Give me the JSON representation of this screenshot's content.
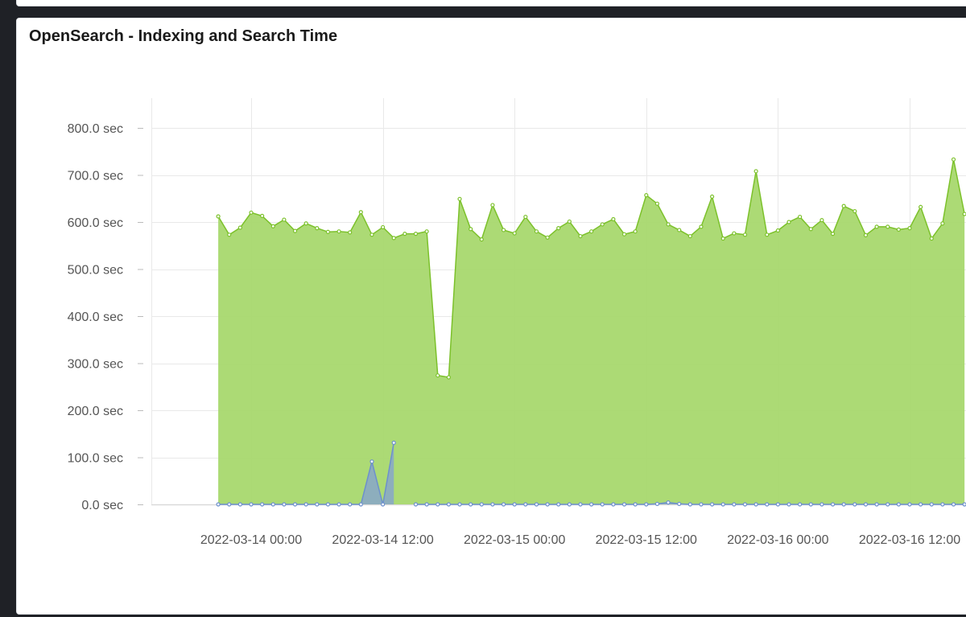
{
  "panel": {
    "title": "OpenSearch - Indexing and Search Time"
  },
  "chart_data": {
    "type": "area",
    "title": "OpenSearch - Indexing and Search Time",
    "xlabel": "",
    "ylabel": "",
    "y_unit": "sec",
    "ylim": [
      0,
      800
    ],
    "y_ticks": [
      {
        "value": 0,
        "label": "0.0  sec"
      },
      {
        "value": 100,
        "label": "100.0  sec"
      },
      {
        "value": 200,
        "label": "200.0  sec"
      },
      {
        "value": 300,
        "label": "300.0  sec"
      },
      {
        "value": 400,
        "label": "400.0  sec"
      },
      {
        "value": 500,
        "label": "500.0  sec"
      },
      {
        "value": 600,
        "label": "600.0  sec"
      },
      {
        "value": 700,
        "label": "700.0  sec"
      },
      {
        "value": 800,
        "label": "800.0  sec"
      }
    ],
    "x_ticks": [
      {
        "value": "2022-03-14 00:00",
        "label": "2022-03-14 00:00"
      },
      {
        "value": "2022-03-14 12:00",
        "label": "2022-03-14 12:00"
      },
      {
        "value": "2022-03-15 00:00",
        "label": "2022-03-15 00:00"
      },
      {
        "value": "2022-03-15 12:00",
        "label": "2022-03-15 12:00"
      },
      {
        "value": "2022-03-16 00:00",
        "label": "2022-03-16 00:00"
      },
      {
        "value": "2022-03-16 12:00",
        "label": "2022-03-16 12:00"
      }
    ],
    "grid": true,
    "colors": {
      "series_1_line": "#7cc12b",
      "series_1_fill": "#a8d86e",
      "series_2_line": "#6d90cc",
      "series_2_fill": "#8aa8c5"
    },
    "series": [
      {
        "values": [
          [
            "2022-03-13 21:00",
            612
          ],
          [
            "2022-03-13 22:00",
            573
          ],
          [
            "2022-03-13 23:00",
            588
          ],
          [
            "2022-03-14 00:00",
            620
          ],
          [
            "2022-03-14 01:00",
            613
          ],
          [
            "2022-03-14 02:00",
            591
          ],
          [
            "2022-03-14 03:00",
            605
          ],
          [
            "2022-03-14 04:00",
            581
          ],
          [
            "2022-03-14 05:00",
            597
          ],
          [
            "2022-03-14 06:00",
            587
          ],
          [
            "2022-03-14 07:00",
            579
          ],
          [
            "2022-03-14 08:00",
            580
          ],
          [
            "2022-03-14 09:00",
            578
          ],
          [
            "2022-03-14 10:00",
            621
          ],
          [
            "2022-03-14 11:00",
            573
          ],
          [
            "2022-03-14 12:00",
            589
          ],
          [
            "2022-03-14 13:00",
            566
          ],
          [
            "2022-03-14 14:00",
            575
          ],
          [
            "2022-03-14 15:00",
            575
          ],
          [
            "2022-03-14 16:00",
            580
          ],
          [
            "2022-03-14 17:00",
            274
          ],
          [
            "2022-03-14 18:00",
            270
          ],
          [
            "2022-03-14 19:00",
            649
          ],
          [
            "2022-03-14 20:00",
            585
          ],
          [
            "2022-03-14 21:00",
            563
          ],
          [
            "2022-03-14 22:00",
            636
          ],
          [
            "2022-03-14 23:00",
            583
          ],
          [
            "2022-03-15 00:00",
            576
          ],
          [
            "2022-03-15 01:00",
            611
          ],
          [
            "2022-03-15 02:00",
            580
          ],
          [
            "2022-03-15 03:00",
            567
          ],
          [
            "2022-03-15 04:00",
            587
          ],
          [
            "2022-03-15 05:00",
            601
          ],
          [
            "2022-03-15 06:00",
            570
          ],
          [
            "2022-03-15 07:00",
            580
          ],
          [
            "2022-03-15 08:00",
            595
          ],
          [
            "2022-03-15 09:00",
            606
          ],
          [
            "2022-03-15 10:00",
            574
          ],
          [
            "2022-03-15 11:00",
            580
          ],
          [
            "2022-03-15 12:00",
            657
          ],
          [
            "2022-03-15 13:00",
            639
          ],
          [
            "2022-03-15 14:00",
            595
          ],
          [
            "2022-03-15 15:00",
            583
          ],
          [
            "2022-03-15 16:00",
            570
          ],
          [
            "2022-03-15 17:00",
            590
          ],
          [
            "2022-03-15 18:00",
            654
          ],
          [
            "2022-03-15 19:00",
            565
          ],
          [
            "2022-03-15 20:00",
            576
          ],
          [
            "2022-03-15 21:00",
            573
          ],
          [
            "2022-03-15 22:00",
            708
          ],
          [
            "2022-03-15 23:00",
            573
          ],
          [
            "2022-03-16 00:00",
            582
          ],
          [
            "2022-03-16 01:00",
            600
          ],
          [
            "2022-03-16 02:00",
            611
          ],
          [
            "2022-03-16 03:00",
            585
          ],
          [
            "2022-03-16 04:00",
            604
          ],
          [
            "2022-03-16 05:00",
            575
          ],
          [
            "2022-03-16 06:00",
            634
          ],
          [
            "2022-03-16 07:00",
            623
          ],
          [
            "2022-03-16 08:00",
            572
          ],
          [
            "2022-03-16 09:00",
            590
          ],
          [
            "2022-03-16 10:00",
            590
          ],
          [
            "2022-03-16 11:00",
            584
          ],
          [
            "2022-03-16 12:00",
            587
          ],
          [
            "2022-03-16 13:00",
            632
          ],
          [
            "2022-03-16 14:00",
            565
          ],
          [
            "2022-03-16 15:00",
            597
          ],
          [
            "2022-03-16 16:00",
            733
          ],
          [
            "2022-03-16 17:00",
            617
          ]
        ]
      },
      {
        "values": [
          [
            "2022-03-13 21:00",
            0
          ],
          [
            "2022-03-13 22:00",
            0
          ],
          [
            "2022-03-13 23:00",
            0
          ],
          [
            "2022-03-14 00:00",
            0
          ],
          [
            "2022-03-14 01:00",
            0
          ],
          [
            "2022-03-14 02:00",
            0
          ],
          [
            "2022-03-14 03:00",
            0
          ],
          [
            "2022-03-14 04:00",
            0
          ],
          [
            "2022-03-14 05:00",
            0
          ],
          [
            "2022-03-14 06:00",
            0
          ],
          [
            "2022-03-14 07:00",
            0
          ],
          [
            "2022-03-14 08:00",
            0
          ],
          [
            "2022-03-14 09:00",
            0
          ],
          [
            "2022-03-14 10:00",
            0
          ],
          [
            "2022-03-14 11:00",
            91
          ],
          [
            "2022-03-14 12:00",
            0
          ],
          [
            "2022-03-14 13:00",
            131
          ],
          [
            "2022-03-14 15:00",
            0
          ],
          [
            "2022-03-14 16:00",
            0
          ],
          [
            "2022-03-14 17:00",
            0
          ],
          [
            "2022-03-14 18:00",
            0
          ],
          [
            "2022-03-14 19:00",
            0
          ],
          [
            "2022-03-14 20:00",
            0
          ],
          [
            "2022-03-14 21:00",
            0
          ],
          [
            "2022-03-14 22:00",
            0
          ],
          [
            "2022-03-14 23:00",
            0
          ],
          [
            "2022-03-15 00:00",
            0
          ],
          [
            "2022-03-15 01:00",
            0
          ],
          [
            "2022-03-15 02:00",
            0
          ],
          [
            "2022-03-15 03:00",
            0
          ],
          [
            "2022-03-15 04:00",
            0
          ],
          [
            "2022-03-15 05:00",
            0
          ],
          [
            "2022-03-15 06:00",
            0
          ],
          [
            "2022-03-15 07:00",
            0
          ],
          [
            "2022-03-15 08:00",
            0
          ],
          [
            "2022-03-15 09:00",
            0
          ],
          [
            "2022-03-15 10:00",
            0
          ],
          [
            "2022-03-15 11:00",
            0
          ],
          [
            "2022-03-15 12:00",
            0
          ],
          [
            "2022-03-15 13:00",
            1
          ],
          [
            "2022-03-15 14:00",
            4
          ],
          [
            "2022-03-15 15:00",
            1
          ],
          [
            "2022-03-15 16:00",
            0
          ],
          [
            "2022-03-15 17:00",
            0
          ],
          [
            "2022-03-15 18:00",
            0
          ],
          [
            "2022-03-15 19:00",
            0
          ],
          [
            "2022-03-15 20:00",
            0
          ],
          [
            "2022-03-15 21:00",
            0
          ],
          [
            "2022-03-15 22:00",
            0
          ],
          [
            "2022-03-15 23:00",
            0
          ],
          [
            "2022-03-16 00:00",
            0
          ],
          [
            "2022-03-16 01:00",
            0
          ],
          [
            "2022-03-16 02:00",
            0
          ],
          [
            "2022-03-16 03:00",
            0
          ],
          [
            "2022-03-16 04:00",
            0
          ],
          [
            "2022-03-16 05:00",
            0
          ],
          [
            "2022-03-16 06:00",
            0
          ],
          [
            "2022-03-16 07:00",
            0
          ],
          [
            "2022-03-16 08:00",
            0
          ],
          [
            "2022-03-16 09:00",
            0
          ],
          [
            "2022-03-16 10:00",
            0
          ],
          [
            "2022-03-16 11:00",
            0
          ],
          [
            "2022-03-16 12:00",
            0
          ],
          [
            "2022-03-16 13:00",
            0
          ],
          [
            "2022-03-16 14:00",
            0
          ],
          [
            "2022-03-16 15:00",
            0
          ],
          [
            "2022-03-16 16:00",
            0
          ],
          [
            "2022-03-16 17:00",
            0
          ]
        ]
      }
    ]
  }
}
